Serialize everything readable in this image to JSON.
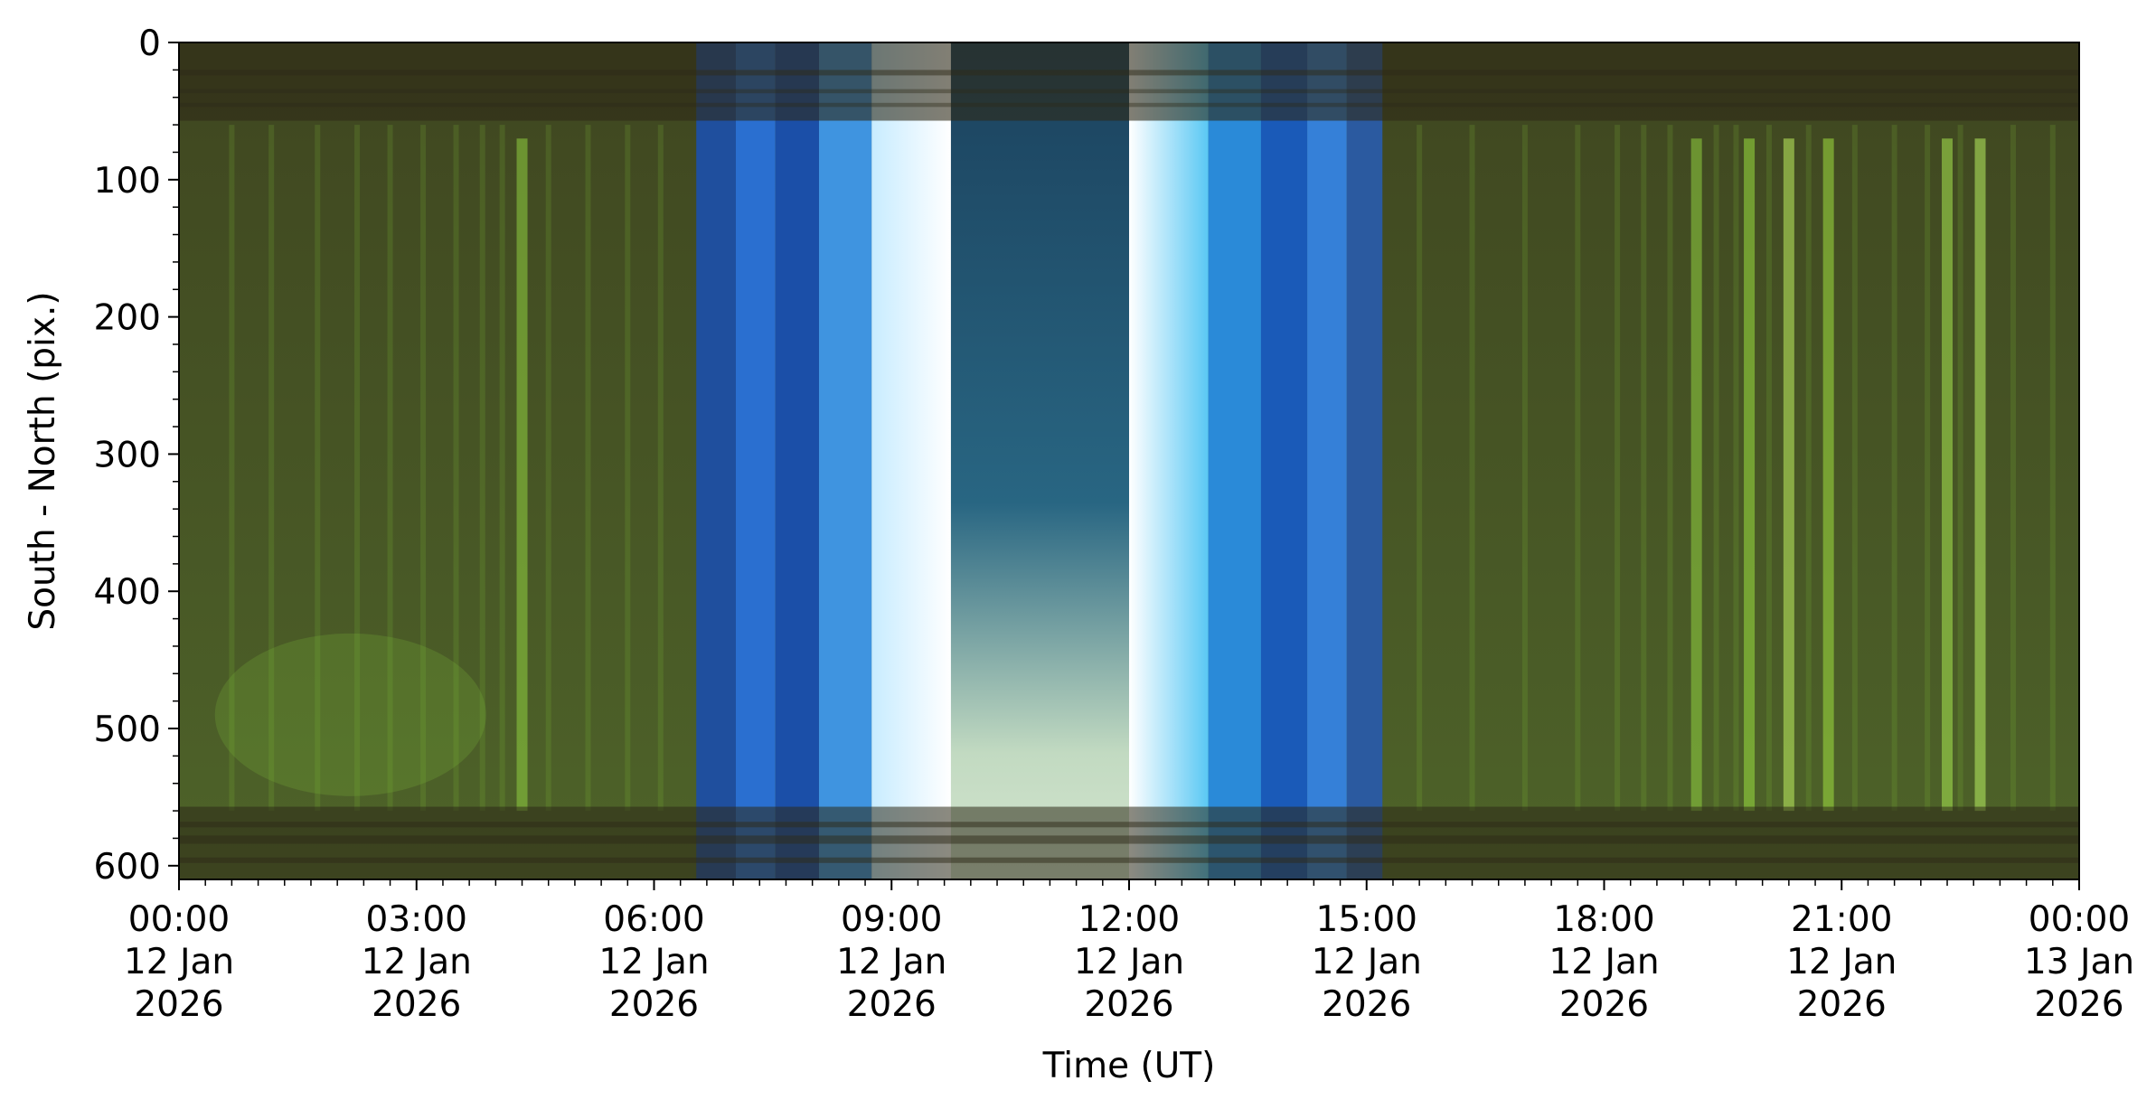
{
  "chart_data": {
    "type": "heatmap",
    "title": "",
    "xlabel": "Time (UT)",
    "ylabel": "South - North (pix.)",
    "xlim": [
      "2026-01-12T00:00",
      "2026-01-13T00:00"
    ],
    "ylim": [
      610,
      0
    ],
    "y_inverted": true,
    "grid": false,
    "x_ticks": [
      {
        "value": "2026-01-12T00:00",
        "lines": [
          "00:00",
          "12 Jan",
          "2026"
        ]
      },
      {
        "value": "2026-01-12T03:00",
        "lines": [
          "03:00",
          "12 Jan",
          "2026"
        ]
      },
      {
        "value": "2026-01-12T06:00",
        "lines": [
          "06:00",
          "12 Jan",
          "2026"
        ]
      },
      {
        "value": "2026-01-12T09:00",
        "lines": [
          "09:00",
          "12 Jan",
          "2026"
        ]
      },
      {
        "value": "2026-01-12T12:00",
        "lines": [
          "12:00",
          "12 Jan",
          "2026"
        ]
      },
      {
        "value": "2026-01-12T15:00",
        "lines": [
          "15:00",
          "12 Jan",
          "2026"
        ]
      },
      {
        "value": "2026-01-12T18:00",
        "lines": [
          "18:00",
          "12 Jan",
          "2026"
        ]
      },
      {
        "value": "2026-01-12T21:00",
        "lines": [
          "21:00",
          "12 Jan",
          "2026"
        ]
      },
      {
        "value": "2026-01-13T00:00",
        "lines": [
          "00:00",
          "13 Jan",
          "2026"
        ]
      }
    ],
    "y_ticks": [
      {
        "value": 0,
        "label": "0"
      },
      {
        "value": 100,
        "label": "100"
      },
      {
        "value": 200,
        "label": "200"
      },
      {
        "value": 300,
        "label": "300"
      },
      {
        "value": 400,
        "label": "400"
      },
      {
        "value": 500,
        "label": "500"
      },
      {
        "value": 600,
        "label": "600"
      }
    ],
    "daylight_segments": [
      {
        "start": "2026-01-12T06:32",
        "end": "2026-01-12T07:02",
        "color": "#1f4f9e"
      },
      {
        "start": "2026-01-12T07:02",
        "end": "2026-01-12T07:32",
        "color": "#2a6fd0"
      },
      {
        "start": "2026-01-12T07:32",
        "end": "2026-01-12T08:05",
        "color": "#1b4fa8"
      },
      {
        "start": "2026-01-12T08:05",
        "end": "2026-01-12T08:45",
        "color": "#3f94e0"
      },
      {
        "start": "2026-01-12T08:45",
        "end": "2026-01-12T09:45",
        "color": "#cfeefe"
      },
      {
        "start": "2026-01-12T09:45",
        "end": "2026-01-12T12:00",
        "color": "#1e4e6e"
      },
      {
        "start": "2026-01-12T12:00",
        "end": "2026-01-12T13:00",
        "color": "#bfeafe"
      },
      {
        "start": "2026-01-12T13:00",
        "end": "2026-01-12T13:40",
        "color": "#2a8ad8"
      },
      {
        "start": "2026-01-12T13:40",
        "end": "2026-01-12T14:15",
        "color": "#1a5ab8"
      },
      {
        "start": "2026-01-12T14:15",
        "end": "2026-01-12T14:45",
        "color": "#3580d8"
      },
      {
        "start": "2026-01-12T14:45",
        "end": "2026-01-12T15:12",
        "color": "#2b5aa0"
      }
    ],
    "bright_aurora_columns": [
      {
        "time": "2026-01-12T04:20",
        "color": "#8fd040"
      },
      {
        "time": "2026-01-12T19:10",
        "color": "#8fd040"
      },
      {
        "time": "2026-01-12T19:50",
        "color": "#9ae040"
      },
      {
        "time": "2026-01-12T20:20",
        "color": "#c0f060"
      },
      {
        "time": "2026-01-12T20:50",
        "color": "#a0e040"
      },
      {
        "time": "2026-01-12T22:20",
        "color": "#a8e850"
      },
      {
        "time": "2026-01-12T22:45",
        "color": "#b8f060"
      }
    ],
    "colors": {
      "night_background": "#3f4620",
      "aurora_green": "#7fc03a",
      "edge_band": "#2e2a18"
    }
  }
}
